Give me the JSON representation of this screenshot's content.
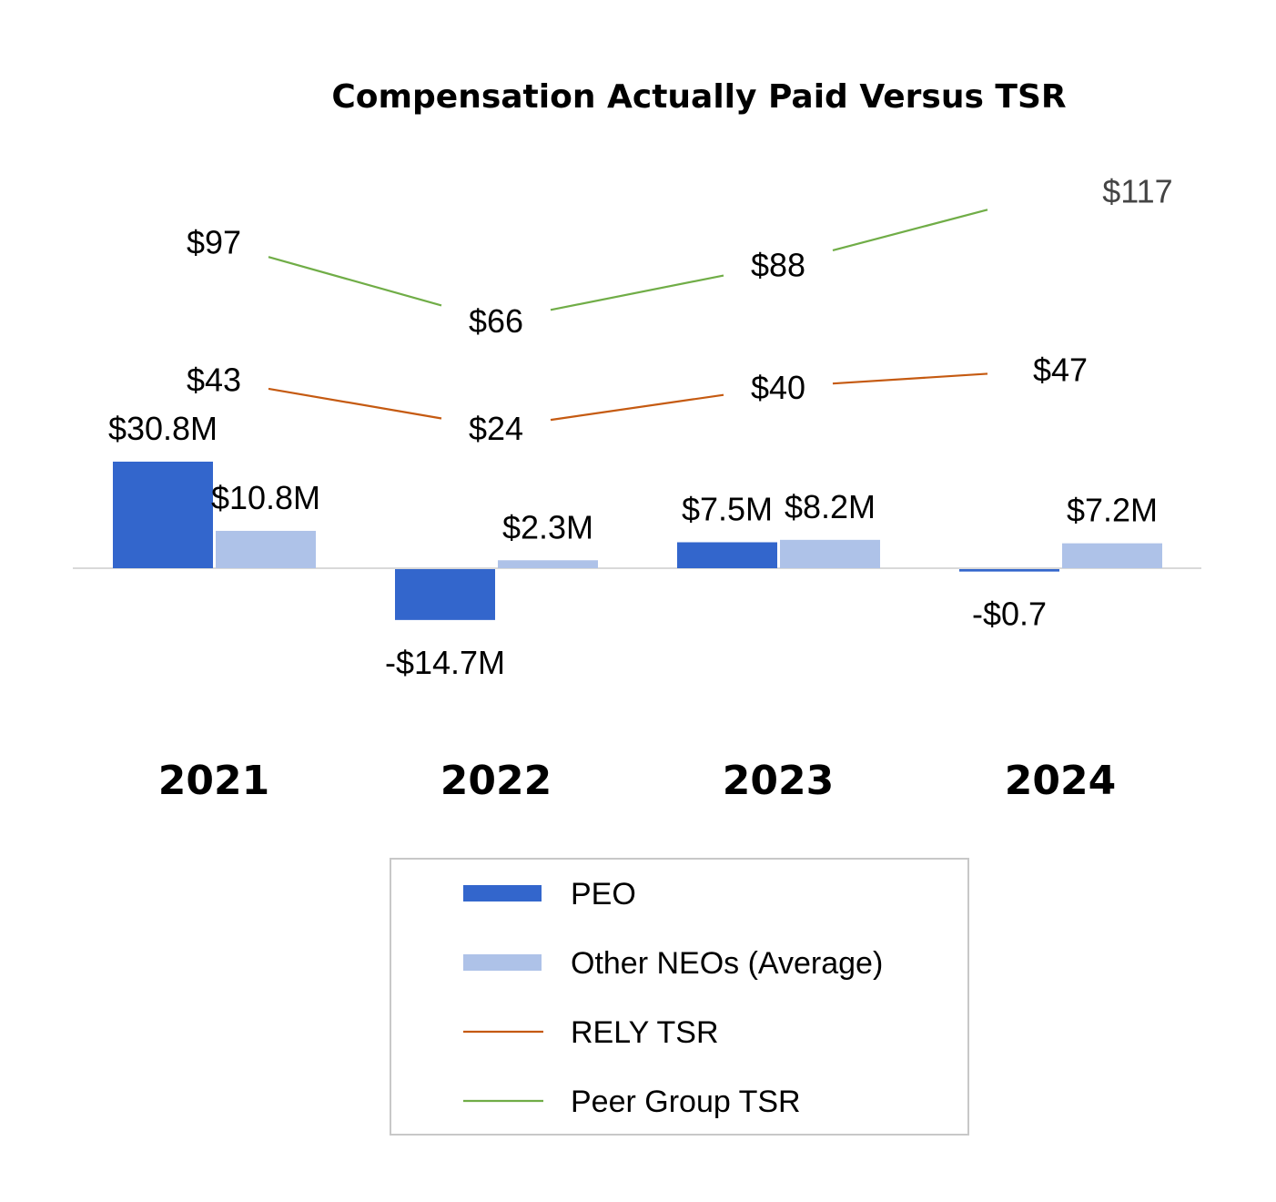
{
  "chart_data": {
    "type": "bar",
    "title": "Compensation Actually Paid Versus TSR",
    "categories": [
      "2021",
      "2022",
      "2023",
      "2024"
    ],
    "bar_series": [
      {
        "name": "PEO",
        "color": "#3366cc",
        "values": [
          30.8,
          -14.7,
          7.5,
          -0.7
        ],
        "labels": [
          "$30.8M",
          "-$14.7M",
          "$7.5M",
          "-$0.7"
        ]
      },
      {
        "name": "Other NEOs (Average)",
        "color": "#aec2e8",
        "values": [
          10.8,
          2.3,
          8.2,
          7.2
        ],
        "labels": [
          "$10.8M",
          "$2.3M",
          "$8.2M",
          "$7.2M"
        ]
      }
    ],
    "line_series": [
      {
        "name": "RELY TSR",
        "color": "#c55a11",
        "values": [
          43,
          24,
          40,
          47
        ],
        "labels": [
          "$43",
          "$24",
          "$40",
          "$47"
        ]
      },
      {
        "name": "Peer Group TSR",
        "color": "#70ad47",
        "values": [
          97,
          66,
          88,
          117
        ],
        "labels": [
          "$97",
          "$66",
          "$88",
          "$117"
        ]
      }
    ],
    "legend": [
      "PEO",
      "Other NEOs (Average)",
      "RELY TSR",
      "Peer Group TSR"
    ],
    "legend_position": "bottom",
    "grid": false
  }
}
